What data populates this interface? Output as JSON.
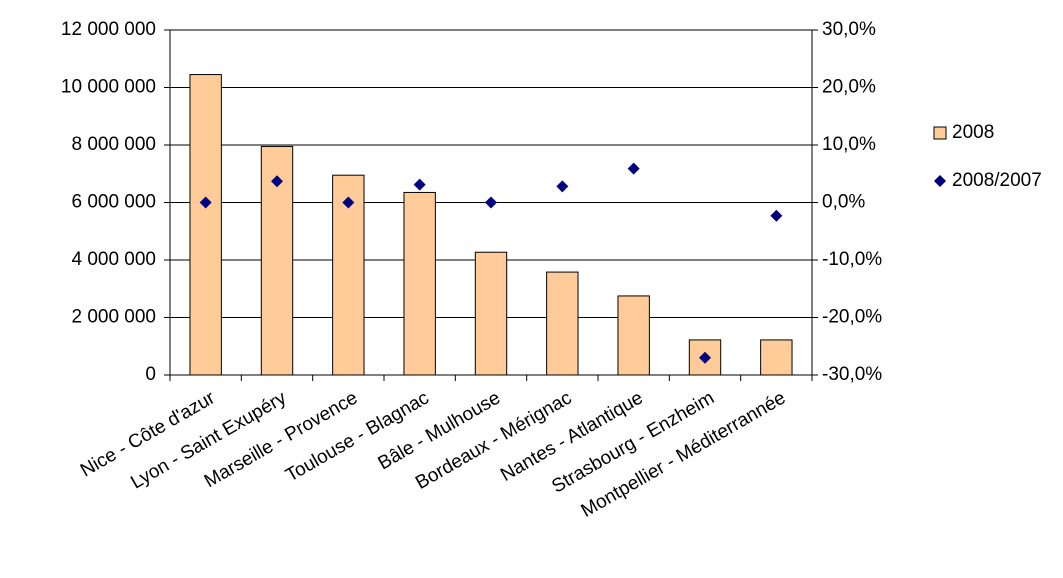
{
  "chart_data": {
    "type": "bar",
    "categories": [
      "Nice - Côte d'azur",
      "Lyon - Saint Exupéry",
      "Marseille - Provence",
      "Toulouse - Blagnac",
      "Bâle - Mulhouse",
      "Bordeaux - Mérignac",
      "Nantes - Atlantique",
      "Strasbourg - Enzheim",
      "Montpellier - Méditerrannée"
    ],
    "series": [
      {
        "name": "2008",
        "color": "#FFCC99",
        "values": [
          10450000,
          7950000,
          6950000,
          6350000,
          4270000,
          3580000,
          2750000,
          1220000,
          1220000
        ]
      },
      {
        "name": "2008/2007",
        "color": "#000080",
        "axis": "y2",
        "type": "scatter",
        "values": [
          0.0,
          3.7,
          0.0,
          3.1,
          0.0,
          2.8,
          5.9,
          -27.0,
          -2.3
        ]
      }
    ],
    "ylim": [
      0,
      12000000
    ],
    "yticks": [
      0,
      {
        "value": 2000000,
        "label": "2 000 000"
      },
      {
        "value": 4000000,
        "label": "4 000 000"
      },
      {
        "value": 6000000,
        "label": "6 000 000"
      },
      {
        "value": 8000000,
        "label": "8 000 000"
      },
      {
        "value": 10000000,
        "label": "10 000 000"
      },
      {
        "value": 12000000,
        "label": "12 000 000"
      }
    ],
    "y2lim": [
      -30,
      30
    ],
    "y2ticks": [
      {
        "value": -30,
        "label": "-30,0%"
      },
      {
        "value": -20,
        "label": "-20,0%"
      },
      {
        "value": -10,
        "label": "-10,0%"
      },
      {
        "value": 0,
        "label": "0,0%"
      },
      {
        "value": 10,
        "label": "10,0%"
      },
      {
        "value": 20,
        "label": "20,0%"
      },
      {
        "value": 30,
        "label": "30,0%"
      }
    ],
    "grid": true,
    "legend": "right"
  }
}
